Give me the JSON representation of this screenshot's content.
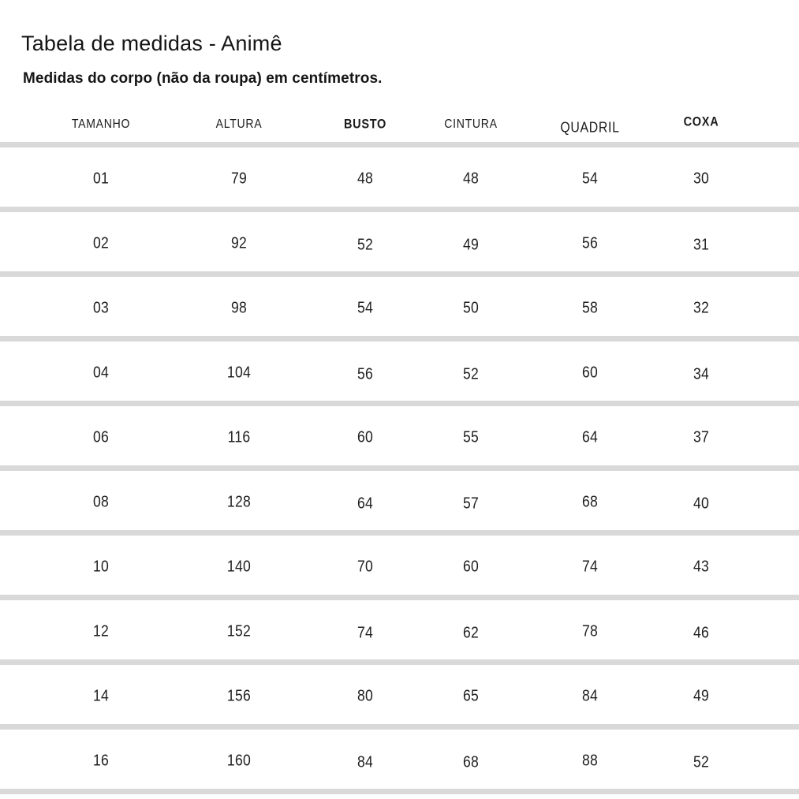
{
  "page": {
    "title": "Tabela de medidas - Animê",
    "subtitle": "Medidas do corpo (não da roupa) em centímetros."
  },
  "colors": {
    "text": "#1a1a1a",
    "divider": "#d9d9d9",
    "background": "#ffffff"
  },
  "chart_data": {
    "type": "table",
    "title": "Tabela de medidas - Animê",
    "subtitle": "Medidas do corpo (não da roupa) em centímetros.",
    "columns": [
      {
        "key": "tamanho",
        "label": "TAMANHO",
        "bold": false
      },
      {
        "key": "altura",
        "label": "ALTURA",
        "bold": false
      },
      {
        "key": "busto",
        "label": "BUSTO",
        "bold": true
      },
      {
        "key": "cintura",
        "label": "CINTURA",
        "bold": false
      },
      {
        "key": "quadril",
        "label": "QUADRIL",
        "bold": false
      },
      {
        "key": "coxa",
        "label": "COXA",
        "bold": true
      }
    ],
    "rows": [
      [
        "01",
        "79",
        "48",
        "48",
        "54",
        "30"
      ],
      [
        "02",
        "92",
        "52",
        "49",
        "56",
        "31"
      ],
      [
        "03",
        "98",
        "54",
        "50",
        "58",
        "32"
      ],
      [
        "04",
        "104",
        "56",
        "52",
        "60",
        "34"
      ],
      [
        "06",
        "116",
        "60",
        "55",
        "64",
        "37"
      ],
      [
        "08",
        "128",
        "64",
        "57",
        "68",
        "40"
      ],
      [
        "10",
        "140",
        "70",
        "60",
        "74",
        "43"
      ],
      [
        "12",
        "152",
        "74",
        "62",
        "78",
        "46"
      ],
      [
        "14",
        "156",
        "80",
        "65",
        "84",
        "49"
      ],
      [
        "16",
        "160",
        "84",
        "68",
        "88",
        "52"
      ]
    ]
  }
}
